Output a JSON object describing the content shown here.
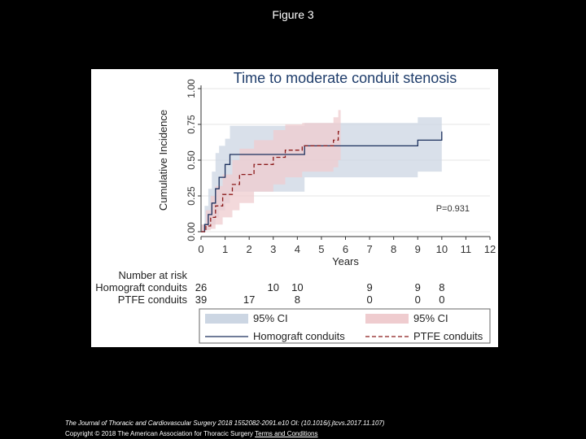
{
  "slide_title": "Figure 3",
  "footer": {
    "citation": "The Journal of Thoracic and Cardiovascular Surgery 2018 1552082-2091.e10 OI: (10.1016/j.jtcvs.2017.11.107)",
    "copyright": "Copyright © 2018 The American Association for Thoracic Surgery",
    "terms_link": "Terms and Conditions"
  },
  "colors": {
    "homograft_line": "#1b2f5c",
    "homograft_ci": "#ccd6e3",
    "ptfe_line": "#8b1a1a",
    "ptfe_ci": "#efcccf",
    "grid": "#e6e6e6"
  },
  "chart_data": {
    "type": "line",
    "title": "Time to moderate conduit stenosis",
    "xlabel": "Years",
    "ylabel": "Cumulative Incidence",
    "xlim": [
      0,
      12
    ],
    "ylim": [
      0,
      1
    ],
    "xticks": [
      0,
      1,
      2,
      3,
      4,
      5,
      6,
      7,
      8,
      9,
      10,
      11,
      12
    ],
    "yticks": [
      "0.00",
      "0.25",
      "0.50",
      "0.75",
      "1.00"
    ],
    "p_value": "P=0.931",
    "series": [
      {
        "name": "Homograft conduits",
        "style": "solid",
        "x": [
          0,
          0.15,
          0.15,
          0.3,
          0.3,
          0.45,
          0.45,
          0.6,
          0.6,
          0.75,
          0.75,
          1.0,
          1.0,
          1.2,
          1.2,
          4.3,
          4.3,
          9.0,
          9.0,
          10.0,
          10.0
        ],
        "y": [
          0,
          0,
          0.05,
          0.05,
          0.12,
          0.12,
          0.2,
          0.2,
          0.3,
          0.3,
          0.38,
          0.38,
          0.47,
          0.47,
          0.54,
          0.54,
          0.6,
          0.6,
          0.64,
          0.64,
          0.7
        ],
        "ci_x": [
          0,
          0.15,
          0.3,
          0.45,
          0.6,
          0.75,
          1.0,
          1.2,
          4.3,
          9.0,
          10.0
        ],
        "ci_lower": [
          0,
          0.01,
          0.02,
          0.05,
          0.1,
          0.15,
          0.2,
          0.28,
          0.38,
          0.42,
          0.45
        ],
        "ci_upper": [
          0.05,
          0.18,
          0.3,
          0.42,
          0.55,
          0.6,
          0.65,
          0.74,
          0.76,
          0.8,
          0.82
        ]
      },
      {
        "name": "PTFE conduits",
        "style": "dashed",
        "x": [
          0,
          0.2,
          0.2,
          0.4,
          0.4,
          0.6,
          0.6,
          0.9,
          0.9,
          1.3,
          1.3,
          1.6,
          1.6,
          2.2,
          2.2,
          3.0,
          3.0,
          3.5,
          3.5,
          4.2,
          4.2,
          5.5,
          5.5,
          5.7,
          5.7,
          5.8
        ],
        "y": [
          0,
          0,
          0.04,
          0.04,
          0.1,
          0.1,
          0.18,
          0.18,
          0.26,
          0.26,
          0.33,
          0.33,
          0.4,
          0.4,
          0.47,
          0.47,
          0.52,
          0.52,
          0.57,
          0.57,
          0.6,
          0.6,
          0.64,
          0.64,
          0.7,
          0.7
        ],
        "ci_x": [
          0,
          0.2,
          0.4,
          0.6,
          0.9,
          1.3,
          1.6,
          2.2,
          3.0,
          3.5,
          4.2,
          5.5,
          5.7
        ],
        "ci_lower": [
          0,
          0.01,
          0.02,
          0.05,
          0.1,
          0.15,
          0.2,
          0.28,
          0.33,
          0.38,
          0.42,
          0.45,
          0.5
        ],
        "ci_upper": [
          0.05,
          0.15,
          0.25,
          0.32,
          0.4,
          0.5,
          0.58,
          0.64,
          0.71,
          0.75,
          0.76,
          0.8,
          0.85
        ]
      }
    ],
    "risk_table": {
      "title": "Number at risk",
      "rows": [
        {
          "label": "Homograft conduits",
          "times": [
            0,
            3,
            4,
            7,
            9,
            10
          ],
          "values": [
            "26",
            "10",
            "10",
            "9",
            "9",
            "8"
          ]
        },
        {
          "label": "PTFE conduits",
          "times": [
            0,
            2,
            4,
            7,
            9,
            10
          ],
          "values": [
            "39",
            "17",
            "8",
            "0",
            "0",
            "0"
          ]
        }
      ]
    },
    "legend": {
      "position": "bottom",
      "items": [
        {
          "label": "95% CI",
          "kind": "ci",
          "series": "Homograft conduits"
        },
        {
          "label": "95% CI",
          "kind": "ci",
          "series": "PTFE conduits"
        },
        {
          "label": "Homograft conduits",
          "kind": "line",
          "series": "Homograft conduits"
        },
        {
          "label": "PTFE conduits",
          "kind": "line",
          "series": "PTFE conduits"
        }
      ]
    }
  }
}
